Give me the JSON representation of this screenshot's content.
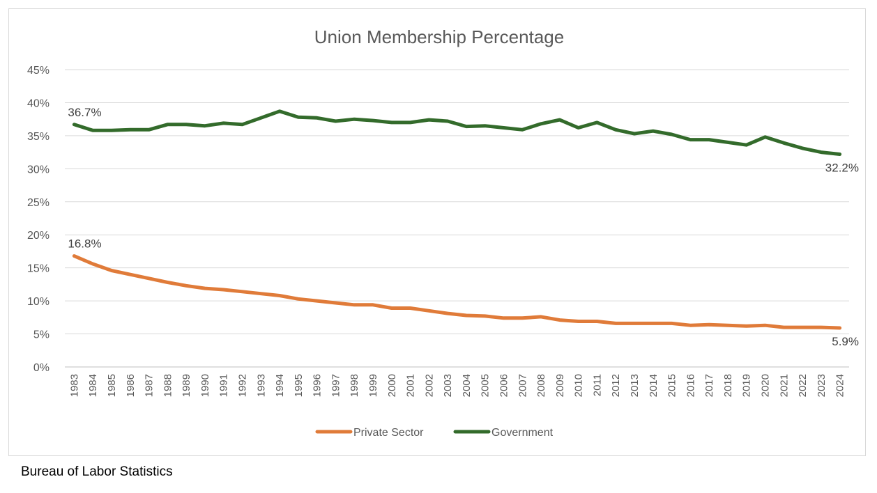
{
  "chart_data": {
    "type": "line",
    "title": "Union Membership Percentage",
    "xlabel": "",
    "ylabel": "",
    "ylim": [
      0,
      45
    ],
    "y_ticks": [
      "0%",
      "5%",
      "10%",
      "15%",
      "20%",
      "25%",
      "30%",
      "35%",
      "40%",
      "45%"
    ],
    "y_tick_values": [
      0,
      5,
      10,
      15,
      20,
      25,
      30,
      35,
      40,
      45
    ],
    "grid": true,
    "legend_position": "bottom",
    "x": [
      "1983",
      "1984",
      "1985",
      "1986",
      "1987",
      "1988",
      "1989",
      "1990",
      "1991",
      "1992",
      "1993",
      "1994",
      "1995",
      "1996",
      "1997",
      "1998",
      "1999",
      "2000",
      "2001",
      "2002",
      "2003",
      "2004",
      "2005",
      "2006",
      "2007",
      "2008",
      "2009",
      "2010",
      "2011",
      "2012",
      "2013",
      "2014",
      "2015",
      "2016",
      "2017",
      "2018",
      "2019",
      "2020",
      "2021",
      "2022",
      "2023",
      "2024"
    ],
    "series": [
      {
        "name": "Private Sector",
        "color": "#e07b39",
        "values": [
          16.8,
          15.6,
          14.6,
          14.0,
          13.4,
          12.8,
          12.3,
          11.9,
          11.7,
          11.4,
          11.1,
          10.8,
          10.3,
          10.0,
          9.7,
          9.4,
          9.4,
          8.9,
          8.9,
          8.5,
          8.1,
          7.8,
          7.7,
          7.4,
          7.4,
          7.6,
          7.1,
          6.9,
          6.9,
          6.6,
          6.6,
          6.6,
          6.6,
          6.3,
          6.4,
          6.3,
          6.2,
          6.3,
          6.0,
          6.0,
          6.0,
          5.9
        ],
        "labels": [
          {
            "index": 0,
            "text": "16.8%"
          },
          {
            "index": 41,
            "text": "5.9%"
          }
        ]
      },
      {
        "name": "Government",
        "color": "#336b2b",
        "values": [
          36.7,
          35.8,
          35.8,
          35.9,
          35.9,
          36.7,
          36.7,
          36.5,
          36.9,
          36.7,
          37.7,
          38.7,
          37.8,
          37.7,
          37.2,
          37.5,
          37.3,
          37.0,
          37.0,
          37.4,
          37.2,
          36.4,
          36.5,
          36.2,
          35.9,
          36.8,
          37.4,
          36.2,
          37.0,
          35.9,
          35.3,
          35.7,
          35.2,
          34.4,
          34.4,
          34.0,
          33.6,
          34.8,
          33.9,
          33.1,
          32.5,
          32.2
        ],
        "labels": [
          {
            "index": 0,
            "text": "36.7%"
          },
          {
            "index": 41,
            "text": "32.2%"
          }
        ]
      }
    ]
  },
  "footer": {
    "source": "Bureau of Labor Statistics"
  }
}
